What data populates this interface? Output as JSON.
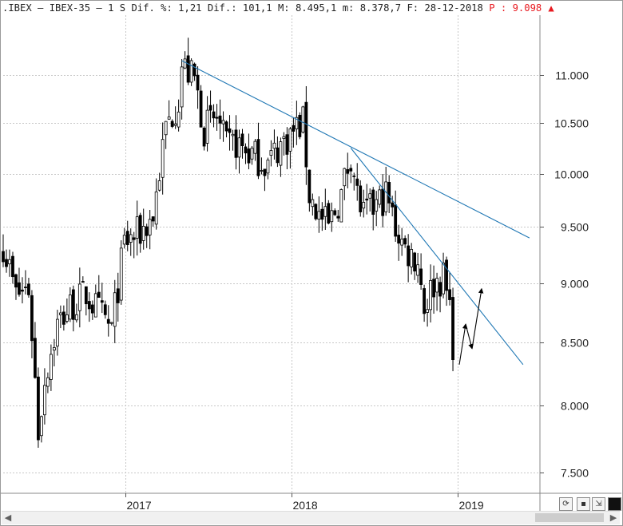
{
  "header": {
    "symbol": ".IBEX",
    "name": "IBEX-35",
    "period": "1 S",
    "change_pct_label": "Dif. %:",
    "change_pct": "1,21",
    "change_label": "Dif.:",
    "change": "101,1",
    "max_label": "M:",
    "max": "8.495,1",
    "min_label": "m:",
    "min": "8.378,7",
    "date_label": "F:",
    "date": "28-12-2018",
    "price_label": "P",
    "price": "9.098",
    "last_icon": "up-arrow-icon"
  },
  "toolbar": {
    "icons": [
      "refresh-icon",
      "save-icon",
      "resize-icon",
      "black-square-icon"
    ]
  },
  "colors": {
    "trendline": "#1f77b4",
    "candle": "#000000",
    "grid": "#c8c8c8",
    "accent": "#e8191f"
  },
  "chart_data": {
    "type": "candlestick",
    "title": "",
    "xlabel": "",
    "ylabel": "",
    "ylim": [
      7350,
      11650
    ],
    "y_ticks": [
      "11.000",
      "10.500",
      "10.000",
      "9.500",
      "9.000",
      "8.500",
      "8.000",
      "7.500"
    ],
    "y_tick_values": [
      11000,
      10500,
      10000,
      9500,
      9000,
      8500,
      8000,
      7500
    ],
    "x_ticks": [
      "2017",
      "2018",
      "2019"
    ],
    "x_tick_dates": [
      "2017-01-01",
      "2018-01-01",
      "2019-01-01"
    ],
    "x_range": [
      "2016-04-08",
      "2019-06-30"
    ],
    "grid": true,
    "frequency": "weekly",
    "series": [
      {
        "close_anchors": [
          [
            "2016-04-08",
            9350
          ],
          [
            "2016-05-06",
            8900
          ],
          [
            "2016-06-03",
            8950
          ],
          [
            "2016-06-17",
            8200
          ],
          [
            "2016-06-24",
            7800
          ],
          [
            "2016-07-08",
            8200
          ],
          [
            "2016-08-05",
            8650
          ],
          [
            "2016-09-02",
            8800
          ],
          [
            "2016-10-07",
            8900
          ],
          [
            "2016-11-04",
            8750
          ],
          [
            "2016-12-02",
            8600
          ],
          [
            "2016-12-30",
            9350
          ],
          [
            "2017-02-03",
            9450
          ],
          [
            "2017-03-03",
            9600
          ],
          [
            "2017-03-31",
            10450
          ],
          [
            "2017-04-28",
            10750
          ],
          [
            "2017-05-05",
            11100
          ],
          [
            "2017-06-02",
            10950
          ],
          [
            "2017-06-23",
            10450
          ],
          [
            "2017-07-21",
            10550
          ],
          [
            "2017-08-11",
            10250
          ],
          [
            "2017-09-01",
            10300
          ],
          [
            "2017-09-29",
            10200
          ],
          [
            "2017-10-20",
            10150
          ],
          [
            "2017-11-10",
            10100
          ],
          [
            "2017-12-01",
            10250
          ],
          [
            "2018-01-12",
            10450
          ],
          [
            "2018-01-26",
            10500
          ],
          [
            "2018-02-09",
            9800
          ],
          [
            "2018-03-02",
            9600
          ],
          [
            "2018-03-23",
            9500
          ],
          [
            "2018-04-20",
            9800
          ],
          [
            "2018-05-11",
            10200
          ],
          [
            "2018-05-25",
            9800
          ],
          [
            "2018-06-08",
            9600
          ],
          [
            "2018-07-06",
            9700
          ],
          [
            "2018-07-27",
            9800
          ],
          [
            "2018-08-17",
            9500
          ],
          [
            "2018-09-07",
            9300
          ],
          [
            "2018-10-05",
            9200
          ],
          [
            "2018-10-19",
            8800
          ],
          [
            "2018-11-09",
            9000
          ],
          [
            "2018-11-30",
            9050
          ],
          [
            "2018-12-14",
            8800
          ],
          [
            "2018-12-21",
            8500
          ]
        ]
      }
    ],
    "trendlines": [
      {
        "from": [
          "2017-05-05",
          11150
        ],
        "to": [
          "2019-06-07",
          9400
        ]
      },
      {
        "from": [
          "2018-05-11",
          10250
        ],
        "to": [
          "2019-05-24",
          8320
        ]
      }
    ],
    "projection": [
      [
        "2019-01-04",
        8320
      ],
      [
        "2019-01-18",
        8650
      ],
      [
        "2019-02-01",
        8450
      ],
      [
        "2019-02-22",
        8950
      ]
    ]
  }
}
